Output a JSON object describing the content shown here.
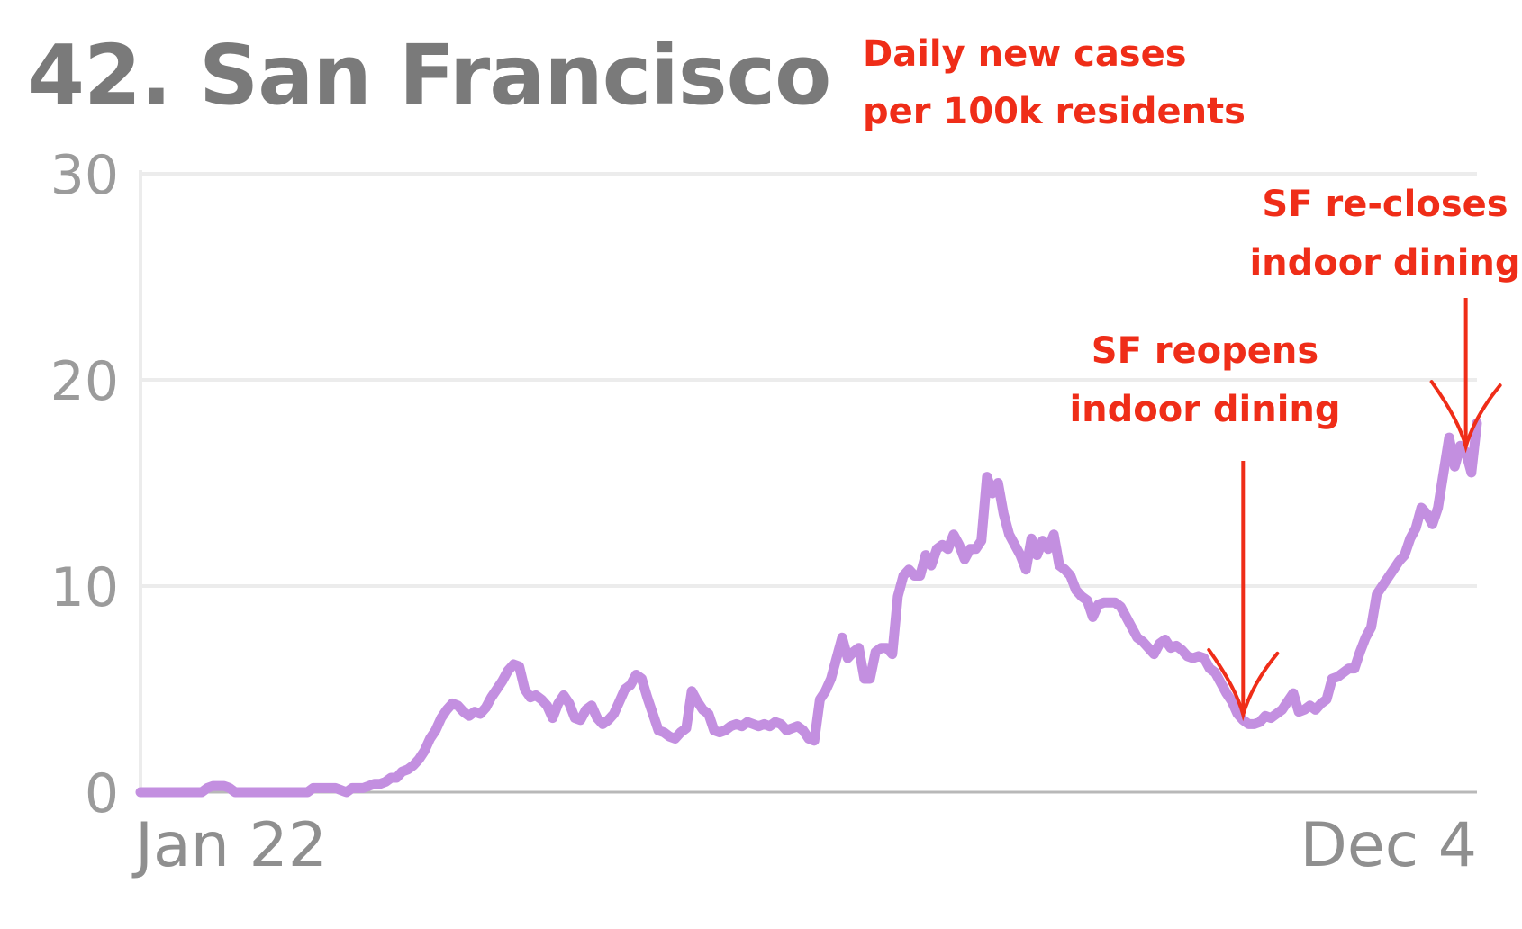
{
  "header": {
    "title": "42. San Francisco",
    "subtitle_line1": "Daily new cases",
    "subtitle_line2": "per 100k residents"
  },
  "colors": {
    "line": "#c38fe0",
    "annotation": "#ef2d18",
    "grid": "#ececec",
    "axis": "#b8b8b8",
    "title": "#7a7a7a",
    "tick": "#9b9b9b"
  },
  "chart_data": {
    "type": "line",
    "title": "42. San Francisco",
    "subtitle": "Daily new cases per 100k residents",
    "xlabel": "",
    "ylabel": "",
    "x_tick_labels": [
      "Jan 22",
      "Dec 4"
    ],
    "y_ticks": [
      0,
      10,
      20,
      30
    ],
    "ylim": [
      0,
      30
    ],
    "grid": true,
    "series": [
      {
        "values": [
          0,
          0,
          0,
          0,
          0,
          0,
          0,
          0,
          0,
          0,
          0,
          0,
          0.2,
          0.3,
          0.3,
          0.3,
          0.2,
          0,
          0,
          0,
          0,
          0,
          0,
          0,
          0,
          0,
          0,
          0,
          0,
          0,
          0,
          0.2,
          0.2,
          0.2,
          0.2,
          0.2,
          0.1,
          0,
          0.2,
          0.2,
          0.2,
          0.3,
          0.4,
          0.4,
          0.5,
          0.7,
          0.7,
          1.0,
          1.1,
          1.3,
          1.6,
          2.0,
          2.6,
          3.0,
          3.6,
          4.0,
          4.3,
          4.2,
          3.9,
          3.7,
          3.9,
          3.8,
          4.1,
          4.6,
          5.0,
          5.4,
          5.9,
          6.2,
          6.1,
          5.0,
          4.6,
          4.7,
          4.5,
          4.2,
          3.6,
          4.3,
          4.7,
          4.3,
          3.6,
          3.5,
          4.0,
          4.2,
          3.6,
          3.3,
          3.5,
          3.8,
          4.4,
          5.0,
          5.2,
          5.7,
          5.5,
          4.6,
          3.8,
          3.0,
          2.9,
          2.7,
          2.6,
          2.9,
          3.1,
          4.9,
          4.4,
          4.0,
          3.8,
          3.0,
          2.9,
          3.0,
          3.2,
          3.3,
          3.2,
          3.4,
          3.3,
          3.2,
          3.3,
          3.2,
          3.4,
          3.3,
          3.0,
          3.1,
          3.2,
          3.0,
          2.6,
          2.5,
          4.5,
          4.9,
          5.5,
          6.5,
          7.5,
          6.5,
          6.8,
          7.0,
          5.5,
          5.5,
          6.8,
          7.0,
          7.0,
          6.7,
          9.5,
          10.5,
          10.8,
          10.5,
          10.5,
          11.5,
          11.0,
          11.8,
          12.0,
          11.8,
          12.5,
          12.0,
          11.3,
          11.8,
          11.8,
          12.2,
          15.3,
          14.5,
          15.0,
          13.5,
          12.5,
          12.0,
          11.5,
          10.8,
          12.3,
          11.5,
          12.2,
          11.8,
          12.5,
          11.0,
          10.8,
          10.5,
          9.8,
          9.5,
          9.3,
          8.5,
          9.1,
          9.2,
          9.2,
          9.2,
          9.0,
          8.5,
          8.0,
          7.5,
          7.3,
          7.0,
          6.7,
          7.2,
          7.4,
          7.0,
          7.1,
          6.9,
          6.6,
          6.5,
          6.6,
          6.5,
          6.0,
          5.8,
          5.3,
          4.8,
          4.4,
          3.8,
          3.5,
          3.3,
          3.3,
          3.4,
          3.7,
          3.6,
          3.8,
          4.0,
          4.4,
          4.8,
          3.9,
          4.0,
          4.2,
          4.0,
          4.3,
          4.5,
          5.5,
          5.6,
          5.8,
          6.0,
          6.0,
          6.8,
          7.5,
          8.0,
          9.6,
          10.0,
          10.4,
          10.8,
          11.2,
          11.5,
          12.3,
          12.8,
          13.8,
          13.5,
          13.0,
          13.8,
          15.5,
          17.2,
          15.8,
          16.8,
          16.5,
          15.5,
          17.9
        ]
      }
    ],
    "annotations": [
      {
        "line1": "SF reopens",
        "line2": "indoor dining",
        "x_index": 198
      },
      {
        "line1": "SF re-closes",
        "line2": "indoor dining",
        "x_index": 238
      }
    ]
  }
}
